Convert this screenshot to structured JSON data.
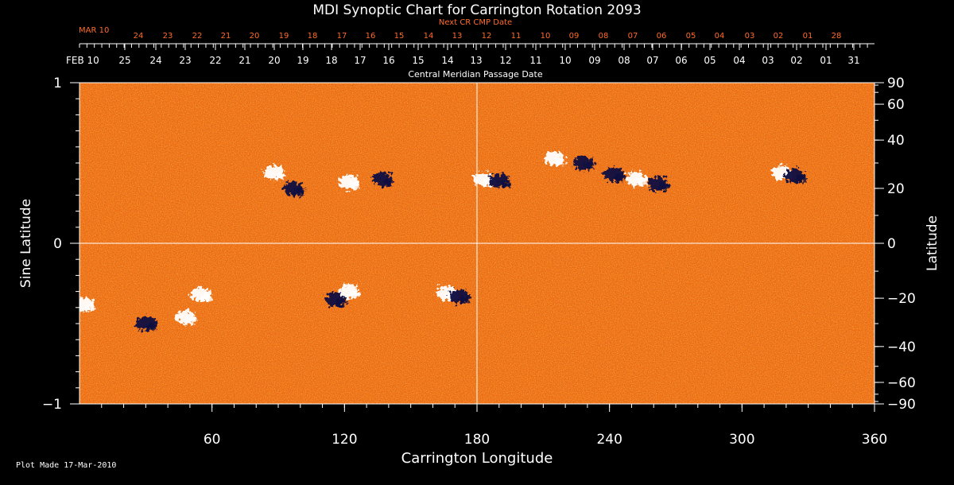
{
  "chart_data": {
    "type": "heatmap",
    "title": "MDI Synoptic Chart for Carrington Rotation 2093",
    "xlabel": "Carrington Longitude",
    "ylabel": "Sine Latitude",
    "y2label": "Latitude",
    "xlim": [
      0,
      360
    ],
    "ylim": [
      -1,
      1
    ],
    "x_ticks": [
      60,
      120,
      180,
      240,
      300,
      360
    ],
    "y_ticks": [
      {
        "value": 1,
        "label": "1"
      },
      {
        "value": 0,
        "label": "0"
      },
      {
        "value": -1,
        "label": "−1"
      }
    ],
    "lat_ticks": [
      90,
      60,
      40,
      20,
      0,
      -20,
      -40,
      -60,
      -90
    ],
    "lat_tick_labels": [
      "90",
      "60",
      "40",
      "20",
      "0",
      "−20",
      "−40",
      "−60",
      "−90"
    ],
    "cmp_axis": {
      "label": "Central Meridian Passage Date",
      "month_label": "FEB 10",
      "dates": [
        "25",
        "24",
        "23",
        "22",
        "21",
        "20",
        "19",
        "18",
        "17",
        "16",
        "15",
        "14",
        "13",
        "12",
        "11",
        "10",
        "09",
        "08",
        "07",
        "06",
        "05",
        "04",
        "03",
        "02",
        "01",
        "31"
      ]
    },
    "next_cmp_axis": {
      "label": "Next CR CMP Date",
      "month_label": "MAR 10",
      "dates": [
        "24",
        "23",
        "22",
        "21",
        "20",
        "19",
        "18",
        "17",
        "16",
        "15",
        "14",
        "13",
        "12",
        "11",
        "10",
        "09",
        "08",
        "07",
        "06",
        "05",
        "04",
        "03",
        "02",
        "01",
        "28"
      ]
    },
    "background_color": "#ee6a10",
    "positive_color": "#ffffff",
    "negative_color": "#0a0a40",
    "regions": [
      {
        "lon": 88,
        "sinlat": 0.44,
        "polarity": "positive"
      },
      {
        "lon": 97,
        "sinlat": 0.34,
        "polarity": "negative"
      },
      {
        "lon": 122,
        "sinlat": 0.38,
        "polarity": "positive"
      },
      {
        "lon": 137,
        "sinlat": 0.4,
        "polarity": "negative"
      },
      {
        "lon": 183,
        "sinlat": 0.4,
        "polarity": "positive"
      },
      {
        "lon": 190,
        "sinlat": 0.39,
        "polarity": "negative"
      },
      {
        "lon": 215,
        "sinlat": 0.53,
        "polarity": "positive"
      },
      {
        "lon": 228,
        "sinlat": 0.5,
        "polarity": "negative"
      },
      {
        "lon": 242,
        "sinlat": 0.43,
        "polarity": "negative"
      },
      {
        "lon": 252,
        "sinlat": 0.4,
        "polarity": "positive"
      },
      {
        "lon": 262,
        "sinlat": 0.37,
        "polarity": "negative"
      },
      {
        "lon": 318,
        "sinlat": 0.44,
        "polarity": "positive"
      },
      {
        "lon": 324,
        "sinlat": 0.42,
        "polarity": "negative"
      },
      {
        "lon": 2,
        "sinlat": -0.38,
        "polarity": "positive"
      },
      {
        "lon": 30,
        "sinlat": -0.5,
        "polarity": "negative"
      },
      {
        "lon": 48,
        "sinlat": -0.46,
        "polarity": "positive"
      },
      {
        "lon": 55,
        "sinlat": -0.32,
        "polarity": "positive"
      },
      {
        "lon": 116,
        "sinlat": -0.35,
        "polarity": "negative"
      },
      {
        "lon": 122,
        "sinlat": -0.3,
        "polarity": "positive"
      },
      {
        "lon": 166,
        "sinlat": -0.31,
        "polarity": "positive"
      },
      {
        "lon": 172,
        "sinlat": -0.33,
        "polarity": "negative"
      }
    ]
  },
  "footer": {
    "text": "Plot Made 17-Mar-2010"
  }
}
